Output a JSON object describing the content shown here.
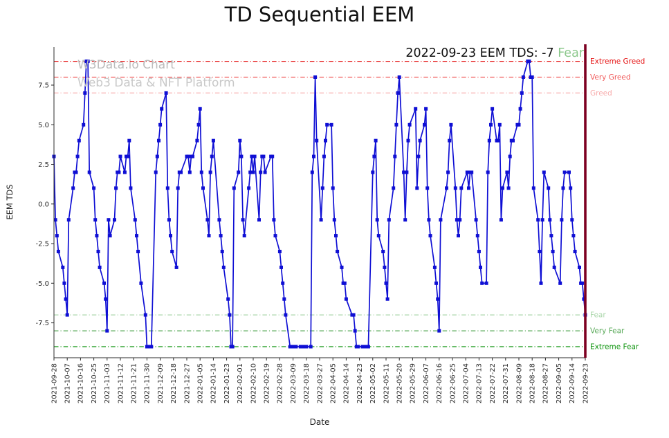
{
  "chart_data": {
    "type": "line",
    "title": "TD Sequential EEM",
    "xlabel": "Date",
    "ylabel": "EEM TDS",
    "ylim": [
      -9.7,
      9.9
    ],
    "grid": false,
    "legend": "none",
    "x_range": [
      "2021-09-28",
      "2022-09-23"
    ],
    "right_spine_color": "#7d0022",
    "watermark": {
      "line1": "W3Data.io Chart",
      "line2": "Web3 Data & NFT Platform",
      "color1": "#bcbcbc",
      "color2": "#c8c8c8"
    },
    "annotation": {
      "prefix": "2022-09-23 EEM TDS: -7 ",
      "highlight": "Fear",
      "highlight_color": "#8cc88c"
    },
    "ref_lines": [
      {
        "value": 9,
        "label": "Extreme Greed",
        "color": "#e51212"
      },
      {
        "value": 8,
        "label": "Very Greed",
        "color": "#f05a5a"
      },
      {
        "value": 7,
        "label": "Greed",
        "color": "#f7abab"
      },
      {
        "value": -7,
        "label": "Fear",
        "color": "#a9d6a9"
      },
      {
        "value": -8,
        "label": "Very Fear",
        "color": "#57a857"
      },
      {
        "value": -9,
        "label": "Extreme Fear",
        "color": "#0e940e"
      }
    ],
    "y_ticks": [
      {
        "label": "7.5",
        "value": 7.5
      },
      {
        "label": "5.0",
        "value": 5.0
      },
      {
        "label": "2.5",
        "value": 2.5
      },
      {
        "label": "0.0",
        "value": 0.0
      },
      {
        "label": "-2.5",
        "value": -2.5
      },
      {
        "label": "-5.0",
        "value": -5.0
      },
      {
        "label": "-7.5",
        "value": -7.5
      }
    ],
    "x_tick_labels": [
      "2021-09-28",
      "2021-10-07",
      "2021-10-16",
      "2021-10-25",
      "2021-11-03",
      "2021-11-12",
      "2021-11-21",
      "2021-11-30",
      "2021-12-09",
      "2021-12-18",
      "2021-12-27",
      "2022-01-05",
      "2022-01-14",
      "2022-01-23",
      "2022-02-01",
      "2022-02-10",
      "2022-02-19",
      "2022-02-28",
      "2022-03-09",
      "2022-03-18",
      "2022-03-27",
      "2022-04-05",
      "2022-04-14",
      "2022-04-23",
      "2022-05-02",
      "2022-05-11",
      "2022-05-20",
      "2022-05-29",
      "2022-06-07",
      "2022-06-16",
      "2022-06-25",
      "2022-07-04",
      "2022-07-13",
      "2022-07-22",
      "2022-07-31",
      "2022-08-09",
      "2022-08-18",
      "2022-08-27",
      "2022-09-05",
      "2022-09-14",
      "2022-09-23"
    ],
    "series": [
      {
        "name": "EEM TDS",
        "color": "#0f0fd4",
        "marker": "square",
        "points": [
          [
            "2021-09-28",
            3
          ],
          [
            "2021-09-29",
            -1
          ],
          [
            "2021-09-30",
            -2
          ],
          [
            "2021-10-01",
            -3
          ],
          [
            "2021-10-04",
            -4
          ],
          [
            "2021-10-05",
            -5
          ],
          [
            "2021-10-06",
            -6
          ],
          [
            "2021-10-07",
            -7
          ],
          [
            "2021-10-08",
            -1
          ],
          [
            "2021-10-11",
            1
          ],
          [
            "2021-10-12",
            2
          ],
          [
            "2021-10-13",
            2
          ],
          [
            "2021-10-14",
            3
          ],
          [
            "2021-10-15",
            4
          ],
          [
            "2021-10-18",
            5
          ],
          [
            "2021-10-19",
            7
          ],
          [
            "2021-10-20",
            9
          ],
          [
            "2021-10-21",
            9
          ],
          [
            "2021-10-22",
            2
          ],
          [
            "2021-10-25",
            1
          ],
          [
            "2021-10-26",
            -1
          ],
          [
            "2021-10-27",
            -2
          ],
          [
            "2021-10-28",
            -3
          ],
          [
            "2021-10-29",
            -4
          ],
          [
            "2021-11-01",
            -5
          ],
          [
            "2021-11-02",
            -6
          ],
          [
            "2021-11-03",
            -8
          ],
          [
            "2021-11-04",
            -1
          ],
          [
            "2021-11-05",
            -2
          ],
          [
            "2021-11-08",
            -1
          ],
          [
            "2021-11-09",
            1
          ],
          [
            "2021-11-10",
            2
          ],
          [
            "2021-11-11",
            2
          ],
          [
            "2021-11-12",
            3
          ],
          [
            "2021-11-15",
            2
          ],
          [
            "2021-11-16",
            3
          ],
          [
            "2021-11-17",
            3
          ],
          [
            "2021-11-18",
            4
          ],
          [
            "2021-11-19",
            1
          ],
          [
            "2021-11-22",
            -1
          ],
          [
            "2021-11-23",
            -2
          ],
          [
            "2021-11-24",
            -3
          ],
          [
            "2021-11-26",
            -5
          ],
          [
            "2021-11-29",
            -7
          ],
          [
            "2021-11-30",
            -9
          ],
          [
            "2021-12-01",
            -9
          ],
          [
            "2021-12-02",
            -9
          ],
          [
            "2021-12-03",
            -9
          ],
          [
            "2021-12-06",
            2
          ],
          [
            "2021-12-07",
            3
          ],
          [
            "2021-12-08",
            4
          ],
          [
            "2021-12-09",
            5
          ],
          [
            "2021-12-10",
            6
          ],
          [
            "2021-12-13",
            7
          ],
          [
            "2021-12-14",
            1
          ],
          [
            "2021-12-15",
            -1
          ],
          [
            "2021-12-16",
            -2
          ],
          [
            "2021-12-17",
            -3
          ],
          [
            "2021-12-20",
            -4
          ],
          [
            "2021-12-21",
            1
          ],
          [
            "2021-12-22",
            2
          ],
          [
            "2021-12-23",
            2
          ],
          [
            "2021-12-27",
            3
          ],
          [
            "2021-12-28",
            3
          ],
          [
            "2021-12-29",
            2
          ],
          [
            "2021-12-30",
            3
          ],
          [
            "2021-12-31",
            3
          ],
          [
            "2022-01-03",
            4
          ],
          [
            "2022-01-04",
            5
          ],
          [
            "2022-01-05",
            6
          ],
          [
            "2022-01-06",
            2
          ],
          [
            "2022-01-07",
            1
          ],
          [
            "2022-01-10",
            -1
          ],
          [
            "2022-01-11",
            -2
          ],
          [
            "2022-01-12",
            2
          ],
          [
            "2022-01-13",
            3
          ],
          [
            "2022-01-14",
            4
          ],
          [
            "2022-01-18",
            -1
          ],
          [
            "2022-01-19",
            -2
          ],
          [
            "2022-01-20",
            -3
          ],
          [
            "2022-01-21",
            -4
          ],
          [
            "2022-01-24",
            -6
          ],
          [
            "2022-01-25",
            -7
          ],
          [
            "2022-01-26",
            -9
          ],
          [
            "2022-01-27",
            -9
          ],
          [
            "2022-01-28",
            1
          ],
          [
            "2022-01-31",
            2
          ],
          [
            "2022-02-01",
            4
          ],
          [
            "2022-02-02",
            3
          ],
          [
            "2022-02-03",
            -1
          ],
          [
            "2022-02-04",
            -2
          ],
          [
            "2022-02-07",
            1
          ],
          [
            "2022-02-08",
            2
          ],
          [
            "2022-02-09",
            3
          ],
          [
            "2022-02-10",
            2
          ],
          [
            "2022-02-11",
            3
          ],
          [
            "2022-02-14",
            -1
          ],
          [
            "2022-02-15",
            2
          ],
          [
            "2022-02-16",
            3
          ],
          [
            "2022-02-17",
            3
          ],
          [
            "2022-02-18",
            2
          ],
          [
            "2022-02-22",
            3
          ],
          [
            "2022-02-23",
            3
          ],
          [
            "2022-02-24",
            -1
          ],
          [
            "2022-02-25",
            -2
          ],
          [
            "2022-02-28",
            -3
          ],
          [
            "2022-03-01",
            -4
          ],
          [
            "2022-03-02",
            -5
          ],
          [
            "2022-03-03",
            -6
          ],
          [
            "2022-03-04",
            -7
          ],
          [
            "2022-03-07",
            -9
          ],
          [
            "2022-03-08",
            -9
          ],
          [
            "2022-03-09",
            -9
          ],
          [
            "2022-03-10",
            -9
          ],
          [
            "2022-03-11",
            -9
          ],
          [
            "2022-03-14",
            -9
          ],
          [
            "2022-03-15",
            -9
          ],
          [
            "2022-03-16",
            -9
          ],
          [
            "2022-03-17",
            -9
          ],
          [
            "2022-03-18",
            -9
          ],
          [
            "2022-03-21",
            -9
          ],
          [
            "2022-03-22",
            2
          ],
          [
            "2022-03-23",
            3
          ],
          [
            "2022-03-24",
            8
          ],
          [
            "2022-03-25",
            4
          ],
          [
            "2022-03-28",
            -1
          ],
          [
            "2022-03-29",
            1
          ],
          [
            "2022-03-30",
            3
          ],
          [
            "2022-03-31",
            4
          ],
          [
            "2022-04-01",
            5
          ],
          [
            "2022-04-04",
            5
          ],
          [
            "2022-04-05",
            1
          ],
          [
            "2022-04-06",
            -1
          ],
          [
            "2022-04-07",
            -2
          ],
          [
            "2022-04-08",
            -3
          ],
          [
            "2022-04-11",
            -4
          ],
          [
            "2022-04-12",
            -5
          ],
          [
            "2022-04-13",
            -5
          ],
          [
            "2022-04-14",
            -6
          ],
          [
            "2022-04-18",
            -7
          ],
          [
            "2022-04-19",
            -7
          ],
          [
            "2022-04-20",
            -8
          ],
          [
            "2022-04-21",
            -9
          ],
          [
            "2022-04-22",
            -9
          ],
          [
            "2022-04-25",
            -9
          ],
          [
            "2022-04-26",
            -9
          ],
          [
            "2022-04-27",
            -9
          ],
          [
            "2022-04-28",
            -9
          ],
          [
            "2022-04-29",
            -9
          ],
          [
            "2022-05-02",
            2
          ],
          [
            "2022-05-03",
            3
          ],
          [
            "2022-05-04",
            4
          ],
          [
            "2022-05-05",
            -1
          ],
          [
            "2022-05-06",
            -2
          ],
          [
            "2022-05-09",
            -3
          ],
          [
            "2022-05-10",
            -4
          ],
          [
            "2022-05-11",
            -5
          ],
          [
            "2022-05-12",
            -6
          ],
          [
            "2022-05-13",
            -1
          ],
          [
            "2022-05-16",
            1
          ],
          [
            "2022-05-17",
            3
          ],
          [
            "2022-05-18",
            5
          ],
          [
            "2022-05-19",
            7
          ],
          [
            "2022-05-20",
            8
          ],
          [
            "2022-05-23",
            2
          ],
          [
            "2022-05-24",
            -1
          ],
          [
            "2022-05-25",
            2
          ],
          [
            "2022-05-26",
            4
          ],
          [
            "2022-05-27",
            5
          ],
          [
            "2022-05-31",
            6
          ],
          [
            "2022-06-01",
            1
          ],
          [
            "2022-06-02",
            3
          ],
          [
            "2022-06-03",
            4
          ],
          [
            "2022-06-06",
            5
          ],
          [
            "2022-06-07",
            6
          ],
          [
            "2022-06-08",
            1
          ],
          [
            "2022-06-09",
            -1
          ],
          [
            "2022-06-10",
            -2
          ],
          [
            "2022-06-13",
            -4
          ],
          [
            "2022-06-14",
            -5
          ],
          [
            "2022-06-15",
            -6
          ],
          [
            "2022-06-16",
            -8
          ],
          [
            "2022-06-17",
            -1
          ],
          [
            "2022-06-21",
            1
          ],
          [
            "2022-06-22",
            2
          ],
          [
            "2022-06-23",
            4
          ],
          [
            "2022-06-24",
            5
          ],
          [
            "2022-06-27",
            1
          ],
          [
            "2022-06-28",
            -1
          ],
          [
            "2022-06-29",
            -2
          ],
          [
            "2022-06-30",
            -1
          ],
          [
            "2022-07-01",
            1
          ],
          [
            "2022-07-05",
            2
          ],
          [
            "2022-07-06",
            1
          ],
          [
            "2022-07-07",
            2
          ],
          [
            "2022-07-08",
            2
          ],
          [
            "2022-07-11",
            -1
          ],
          [
            "2022-07-12",
            -2
          ],
          [
            "2022-07-13",
            -3
          ],
          [
            "2022-07-14",
            -4
          ],
          [
            "2022-07-15",
            -5
          ],
          [
            "2022-07-18",
            -5
          ],
          [
            "2022-07-19",
            2
          ],
          [
            "2022-07-20",
            4
          ],
          [
            "2022-07-21",
            5
          ],
          [
            "2022-07-22",
            6
          ],
          [
            "2022-07-25",
            4
          ],
          [
            "2022-07-26",
            4
          ],
          [
            "2022-07-27",
            5
          ],
          [
            "2022-07-28",
            -1
          ],
          [
            "2022-07-29",
            1
          ],
          [
            "2022-08-01",
            2
          ],
          [
            "2022-08-02",
            1
          ],
          [
            "2022-08-03",
            3
          ],
          [
            "2022-08-04",
            4
          ],
          [
            "2022-08-05",
            4
          ],
          [
            "2022-08-08",
            5
          ],
          [
            "2022-08-09",
            5
          ],
          [
            "2022-08-10",
            6
          ],
          [
            "2022-08-11",
            7
          ],
          [
            "2022-08-12",
            8
          ],
          [
            "2022-08-15",
            9
          ],
          [
            "2022-08-16",
            9
          ],
          [
            "2022-08-17",
            8
          ],
          [
            "2022-08-18",
            8
          ],
          [
            "2022-08-19",
            1
          ],
          [
            "2022-08-22",
            -1
          ],
          [
            "2022-08-23",
            -3
          ],
          [
            "2022-08-24",
            -5
          ],
          [
            "2022-08-25",
            -1
          ],
          [
            "2022-08-26",
            2
          ],
          [
            "2022-08-29",
            1
          ],
          [
            "2022-08-30",
            -1
          ],
          [
            "2022-08-31",
            -2
          ],
          [
            "2022-09-01",
            -3
          ],
          [
            "2022-09-02",
            -4
          ],
          [
            "2022-09-06",
            -5
          ],
          [
            "2022-09-07",
            -1
          ],
          [
            "2022-09-08",
            1
          ],
          [
            "2022-09-09",
            2
          ],
          [
            "2022-09-12",
            2
          ],
          [
            "2022-09-13",
            1
          ],
          [
            "2022-09-14",
            -1
          ],
          [
            "2022-09-15",
            -2
          ],
          [
            "2022-09-16",
            -3
          ],
          [
            "2022-09-19",
            -4
          ],
          [
            "2022-09-20",
            -5
          ],
          [
            "2022-09-21",
            -5
          ],
          [
            "2022-09-22",
            -6
          ],
          [
            "2022-09-23",
            -7
          ]
        ]
      }
    ]
  }
}
